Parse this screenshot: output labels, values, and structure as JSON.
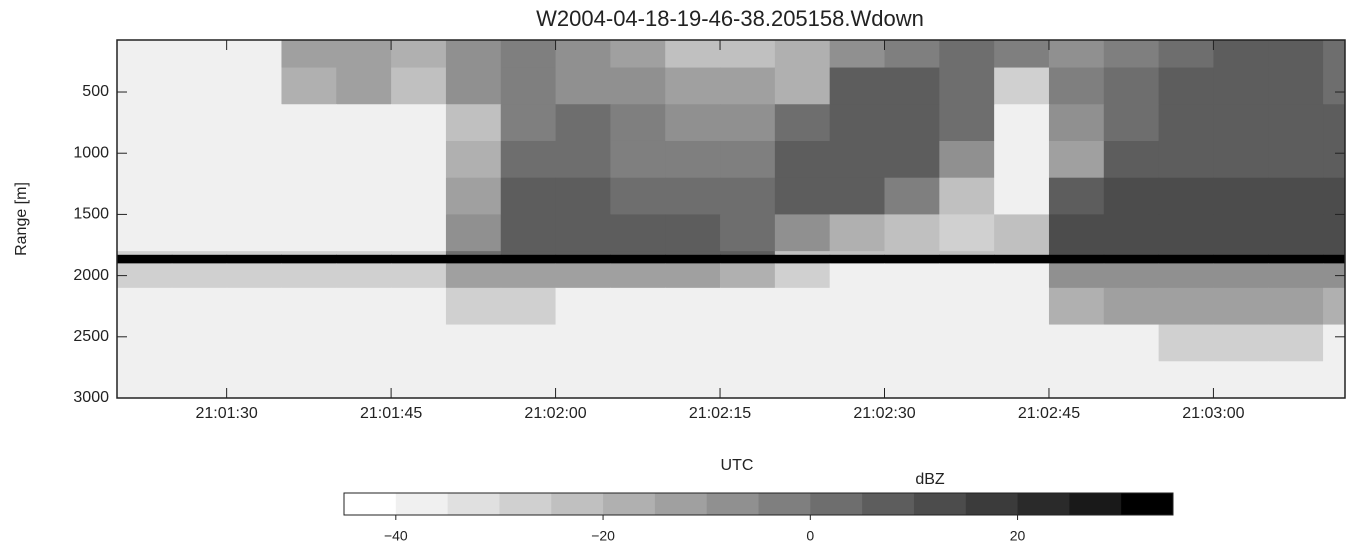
{
  "chart_data": {
    "type": "heatmap",
    "title": "W2004-04-18-19-46-38.205158.Wdown",
    "x_label": "UTC",
    "y_label": "Range [m]",
    "xlim": [
      75680,
      75792
    ],
    "xticks": [
      {
        "value": 75690,
        "label": "21:01:30"
      },
      {
        "value": 75705,
        "label": "21:01:45"
      },
      {
        "value": 75720,
        "label": "21:02:00"
      },
      {
        "value": 75735,
        "label": "21:02:15"
      },
      {
        "value": 75750,
        "label": "21:02:30"
      },
      {
        "value": 75765,
        "label": "21:02:45"
      },
      {
        "value": 75780,
        "label": "21:03:00"
      }
    ],
    "ylim": [
      3000,
      75
    ],
    "yticks": [
      500,
      1000,
      1500,
      2000,
      2500,
      3000
    ],
    "xbins": [
      75680,
      75685,
      75690,
      75695,
      75700,
      75705,
      75710,
      75715,
      75720,
      75725,
      75730,
      75735,
      75740,
      75745,
      75750,
      75755,
      75760,
      75765,
      75770,
      75775,
      75780,
      75785,
      75790,
      75792
    ],
    "ybins": [
      75,
      300,
      600,
      900,
      1200,
      1500,
      1800,
      1830,
      1900,
      2100,
      2400,
      2700,
      3000
    ],
    "values": [
      [
        -40,
        -40,
        -40,
        -15,
        -12,
        -20,
        -8,
        -5,
        -10,
        -15,
        -25,
        -22,
        -20,
        -10,
        -5,
        0,
        -5,
        -10,
        -5,
        0,
        5,
        5,
        0
      ],
      [
        -40,
        -40,
        -40,
        -20,
        -15,
        -25,
        -10,
        -5,
        -10,
        -10,
        -15,
        -15,
        -20,
        5,
        5,
        0,
        -30,
        -5,
        0,
        5,
        5,
        5,
        0
      ],
      [
        -40,
        -40,
        -40,
        -40,
        -40,
        -40,
        -25,
        -5,
        0,
        -5,
        -10,
        -10,
        0,
        5,
        5,
        0,
        -40,
        -10,
        0,
        5,
        5,
        5,
        5
      ],
      [
        -40,
        -40,
        -40,
        -40,
        -40,
        -40,
        -20,
        0,
        0,
        -5,
        -5,
        -5,
        5,
        5,
        5,
        -10,
        -40,
        -15,
        5,
        5,
        5,
        5,
        5
      ],
      [
        -40,
        -40,
        -40,
        -40,
        -40,
        -40,
        -15,
        5,
        5,
        0,
        0,
        0,
        5,
        5,
        -5,
        -25,
        -40,
        5,
        10,
        10,
        10,
        10,
        10
      ],
      [
        -40,
        -40,
        -40,
        -40,
        -40,
        -40,
        -10,
        5,
        5,
        5,
        5,
        0,
        -10,
        -20,
        -25,
        -30,
        -25,
        10,
        10,
        10,
        10,
        10,
        10
      ],
      [
        -30,
        -30,
        -30,
        -30,
        -30,
        -30,
        0,
        5,
        5,
        5,
        5,
        5,
        -25,
        -25,
        -25,
        -25,
        -25,
        10,
        10,
        10,
        10,
        10,
        10
      ],
      [
        35,
        35,
        35,
        35,
        35,
        35,
        35,
        35,
        35,
        35,
        35,
        35,
        35,
        35,
        35,
        35,
        35,
        35,
        35,
        35,
        35,
        35,
        35
      ],
      [
        -30,
        -30,
        -30,
        -30,
        -30,
        -30,
        -15,
        -15,
        -15,
        -15,
        -15,
        -20,
        -30,
        -40,
        -40,
        -40,
        -40,
        -10,
        -10,
        -10,
        -10,
        -10,
        -10
      ],
      [
        -40,
        -40,
        -40,
        -40,
        -40,
        -40,
        -30,
        -30,
        -40,
        -40,
        -40,
        -40,
        -40,
        -40,
        -40,
        -40,
        -40,
        -20,
        -15,
        -15,
        -15,
        -15,
        -20
      ],
      [
        -40,
        -40,
        -40,
        -40,
        -40,
        -40,
        -40,
        -40,
        -40,
        -40,
        -40,
        -40,
        -40,
        -40,
        -40,
        -40,
        -40,
        -40,
        -40,
        -30,
        -30,
        -30,
        -40
      ],
      [
        -40,
        -40,
        -40,
        -40,
        -40,
        -40,
        -40,
        -40,
        -40,
        -40,
        -40,
        -40,
        -40,
        -40,
        -40,
        -40,
        -40,
        -40,
        -40,
        -40,
        -40,
        -40,
        -40
      ]
    ],
    "colorbar": {
      "label": "dBZ",
      "lim": [
        -45,
        35
      ],
      "ticks": [
        {
          "value": -40,
          "label": "−40"
        },
        {
          "value": -20,
          "label": "−20"
        },
        0,
        20
      ],
      "colors": [
        "#ffffff",
        "#f0f0f0",
        "#e0e0e0",
        "#d0d0d0",
        "#c0c0c0",
        "#b0b0b0",
        "#a0a0a0",
        "#909090",
        "#7f7f7f",
        "#6e6e6e",
        "#5d5d5d",
        "#4c4c4c",
        "#3b3b3b",
        "#2a2a2a",
        "#191919",
        "#000000"
      ]
    }
  }
}
